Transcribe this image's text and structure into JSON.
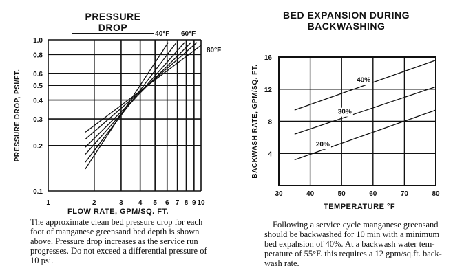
{
  "chart_data": [
    {
      "type": "line",
      "title": "PRESSURE DROP",
      "xlabel": "FLOW RATE, GPM/SQ. FT.",
      "ylabel": "PRESSURE DROP, PSI/FT.",
      "xscale": "log",
      "yscale": "log",
      "xlim": [
        1,
        10
      ],
      "ylim": [
        0.1,
        1.0
      ],
      "xticks": [
        "1",
        "2",
        "3",
        "4",
        "5",
        "6",
        "7",
        "8",
        "9",
        "10"
      ],
      "yticks": [
        "1.0",
        "0.8",
        "0.6",
        "0.5",
        "0.4",
        "0.3",
        "0.2",
        "0.1"
      ],
      "grid": true,
      "series_labels": [
        "40°F",
        "60°F",
        "80°F"
      ],
      "series": [
        {
          "x": [
            1.75,
            6.1
          ],
          "y": [
            0.14,
            0.96
          ]
        },
        {
          "x": [
            1.75,
            6.9
          ],
          "y": [
            0.155,
            0.96
          ]
        },
        {
          "x": [
            1.75,
            7.8
          ],
          "y": [
            0.175,
            0.96
          ]
        },
        {
          "x": [
            1.75,
            8.6
          ],
          "y": [
            0.195,
            0.96
          ]
        },
        {
          "x": [
            1.75,
            9.4
          ],
          "y": [
            0.22,
            0.96
          ]
        },
        {
          "x": [
            1.75,
            10.0
          ],
          "y": [
            0.245,
            0.92
          ]
        }
      ]
    },
    {
      "type": "line",
      "title": "BED EXPANSION DURING BACKWASHING",
      "xlabel": "TEMPERATURE °F",
      "ylabel": "BACKWASH RATE, GPM/SQ. FT.",
      "xlim": [
        30,
        80
      ],
      "ylim": [
        0,
        16
      ],
      "xticks": [
        "30",
        "40",
        "50",
        "60",
        "70",
        "80"
      ],
      "yticks": [
        "16",
        "12",
        "8",
        "4"
      ],
      "grid": true,
      "series": [
        {
          "name": "40%",
          "x": [
            35,
            80
          ],
          "y": [
            9.4,
            15.6
          ]
        },
        {
          "name": "30%",
          "x": [
            35,
            80
          ],
          "y": [
            6.4,
            12.3
          ]
        },
        {
          "name": "20%",
          "x": [
            35,
            80
          ],
          "y": [
            3.2,
            9.4
          ]
        }
      ]
    }
  ],
  "captions": {
    "left": [
      "The approximate clean bed pressure drop for each",
      "foot of manganese greensand bed depth is shown",
      "above. Pressure drop increases as the service run",
      "progresses. Do not exceed a differential pressure of",
      "10 psi."
    ],
    "right": [
      "Following a service cycle manganese greensand",
      "should be backwashed for 10 min with a minimum",
      "bed expahsion of 40%. At a backwash water tem-",
      "perature of 55°F. this requires a 12 gpm/sq.ft. back-",
      "wash rate."
    ]
  }
}
